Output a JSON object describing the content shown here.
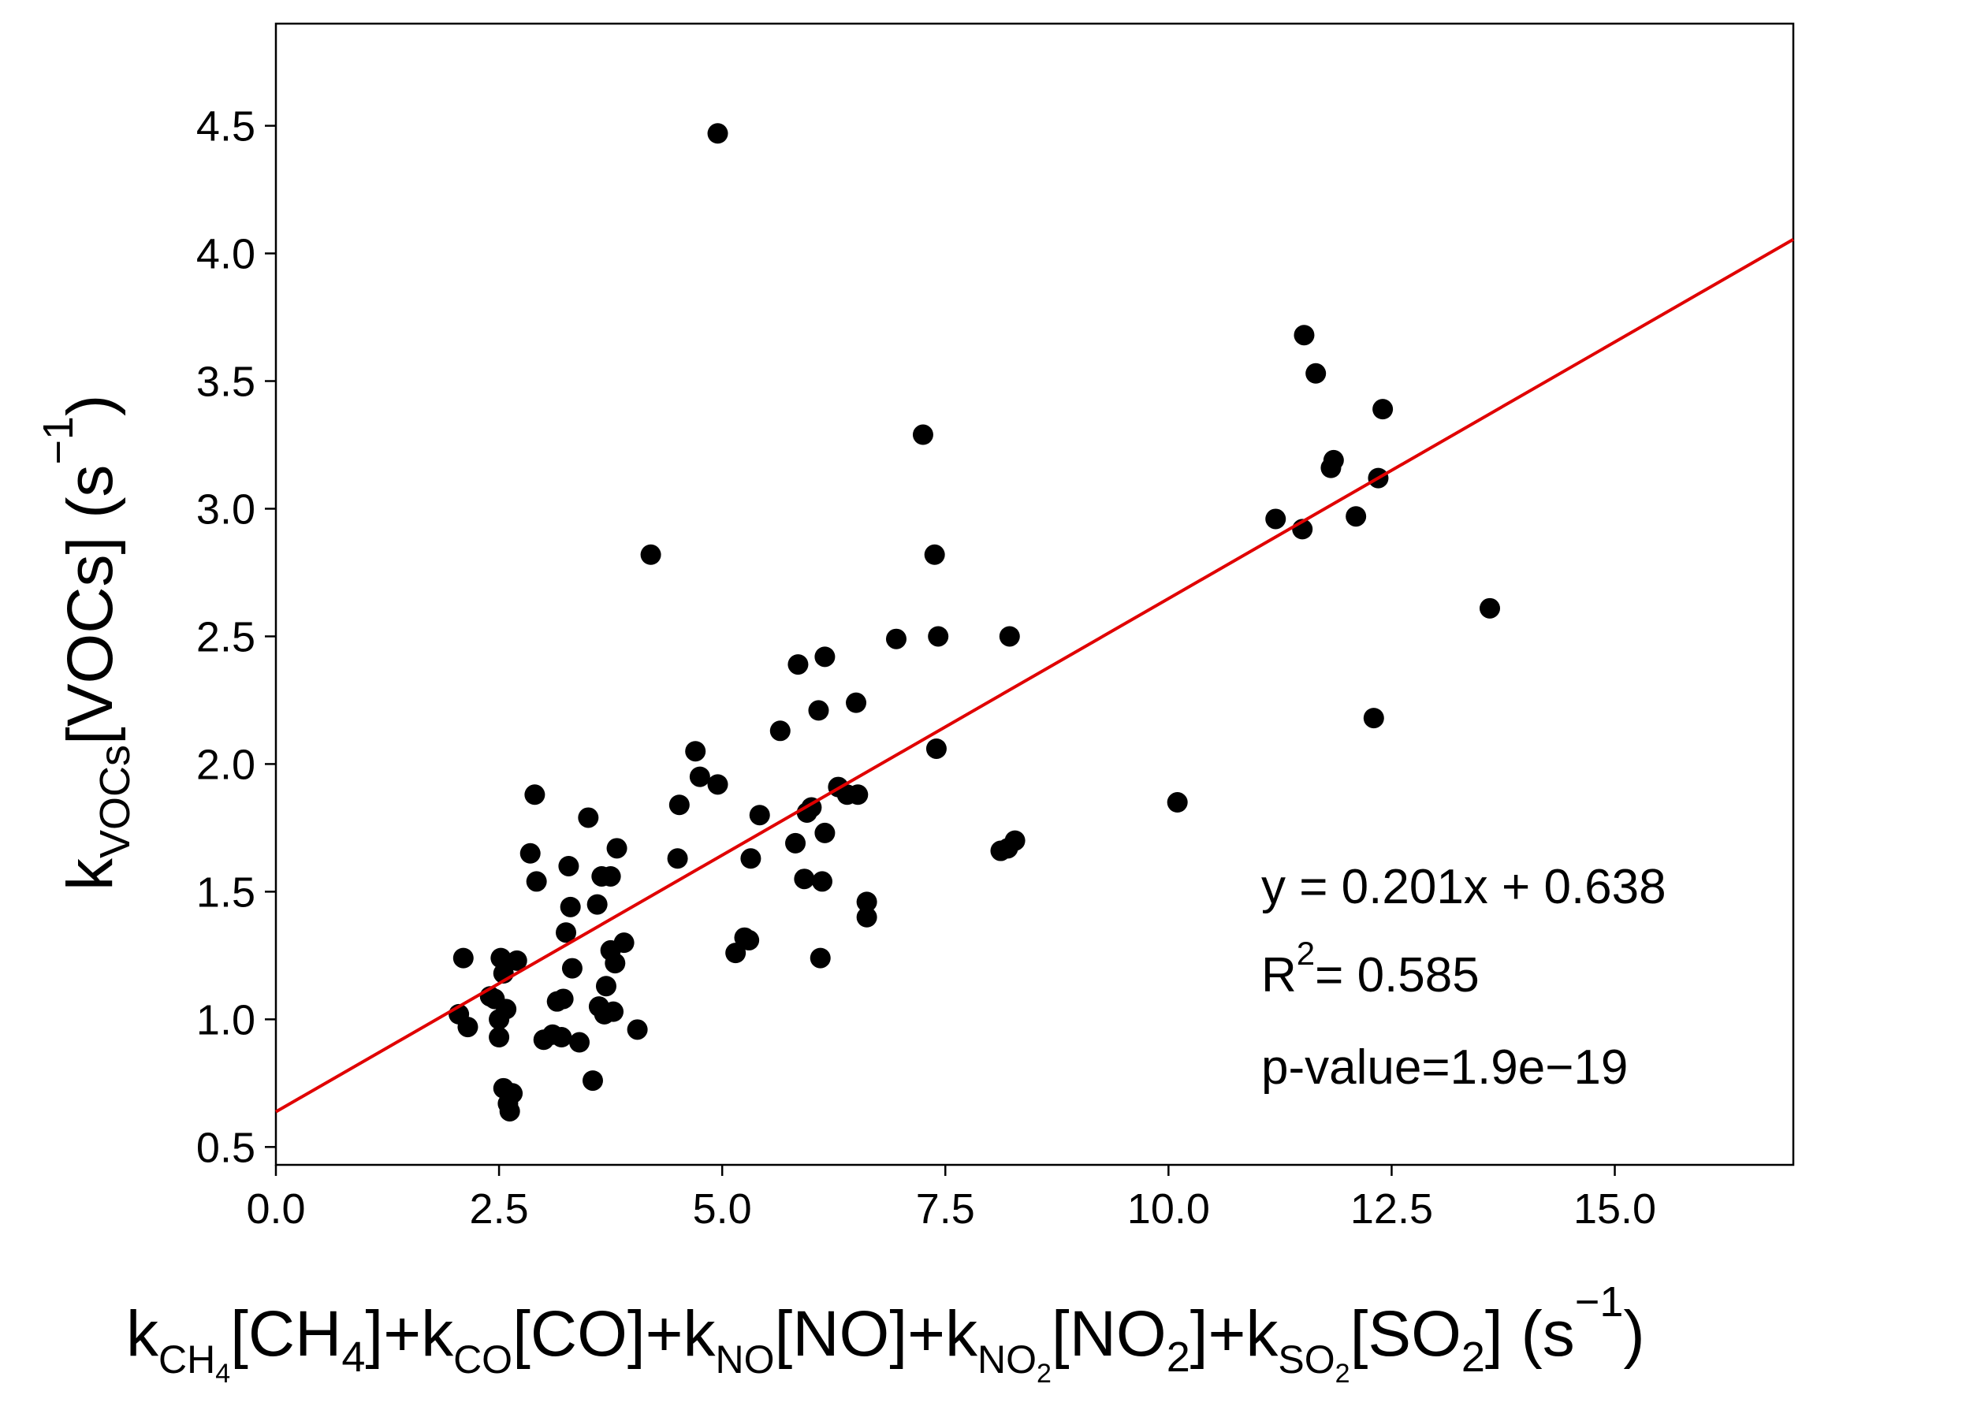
{
  "chart_data": {
    "type": "scatter",
    "xlim": [
      0,
      17
    ],
    "ylim": [
      0.43,
      4.9
    ],
    "x_ticks": [
      "0.0",
      "2.5",
      "5.0",
      "7.5",
      "10.0",
      "12.5",
      "15.0"
    ],
    "y_ticks": [
      "0.5",
      "1.0",
      "1.5",
      "2.0",
      "2.5",
      "3.0",
      "3.5",
      "4.0",
      "4.5"
    ],
    "xlabel": {
      "k": "k",
      "ch4_sub": "CH",
      "ch4_subsub": "4",
      "ch4_bracket_open": "[CH",
      "ch4_bracket_sub": "4",
      "ch4_bracket_close": "]+k",
      "co_sub": "CO",
      "co_bracket": "[CO]+k",
      "no_sub": "NO",
      "no_bracket": "[NO]+k",
      "no2_sub": "NO",
      "no2_subsub": "2",
      "no2_bracket_open": "[NO",
      "no2_bracket_sub": "2",
      "no2_bracket_close": "]+k",
      "so2_sub": "SO",
      "so2_subsub": "2",
      "so2_bracket_open": "[SO",
      "so2_bracket_sub": "2",
      "so2_bracket_close": "] (s",
      "unit_sup": "−1",
      "unit_close": ")"
    },
    "ylabel": {
      "k": "k",
      "sub": "VOCs",
      "main": "[VOCs] (s",
      "sup": "−1",
      "close": ")"
    },
    "annotation": {
      "equation": "y = 0.201x + 0.638",
      "r2_prefix": "R",
      "r2_sup": "2",
      "r2_value": "= 0.585",
      "pvalue": "p-value=1.9e−19"
    },
    "fit": {
      "slope": 0.201,
      "intercept": 0.638,
      "color": "#e00000"
    },
    "marker_color": "#000000",
    "series": [
      {
        "points": [
          [
            2.05,
            1.02
          ],
          [
            2.1,
            1.24
          ],
          [
            2.15,
            0.97
          ],
          [
            2.4,
            1.09
          ],
          [
            2.45,
            1.08
          ],
          [
            2.5,
            1.0
          ],
          [
            2.5,
            0.93
          ],
          [
            2.52,
            1.24
          ],
          [
            2.55,
            1.18
          ],
          [
            2.58,
            1.04
          ],
          [
            2.55,
            0.73
          ],
          [
            2.6,
            0.67
          ],
          [
            2.62,
            0.64
          ],
          [
            2.65,
            0.71
          ],
          [
            2.7,
            1.23
          ],
          [
            2.85,
            1.65
          ],
          [
            2.9,
            1.88
          ],
          [
            2.92,
            1.54
          ],
          [
            3.0,
            0.92
          ],
          [
            3.1,
            0.94
          ],
          [
            3.15,
            1.07
          ],
          [
            3.2,
            0.93
          ],
          [
            3.22,
            1.08
          ],
          [
            3.25,
            1.34
          ],
          [
            3.28,
            1.6
          ],
          [
            3.3,
            1.44
          ],
          [
            3.32,
            1.2
          ],
          [
            3.4,
            0.91
          ],
          [
            3.5,
            1.79
          ],
          [
            3.55,
            0.76
          ],
          [
            3.6,
            1.45
          ],
          [
            3.62,
            1.05
          ],
          [
            3.65,
            1.56
          ],
          [
            3.68,
            1.02
          ],
          [
            3.7,
            1.13
          ],
          [
            3.75,
            1.56
          ],
          [
            3.75,
            1.27
          ],
          [
            3.78,
            1.03
          ],
          [
            3.8,
            1.22
          ],
          [
            3.82,
            1.67
          ],
          [
            3.9,
            1.3
          ],
          [
            4.05,
            0.96
          ],
          [
            4.2,
            2.82
          ],
          [
            4.5,
            1.63
          ],
          [
            4.52,
            1.84
          ],
          [
            4.7,
            2.05
          ],
          [
            4.75,
            1.95
          ],
          [
            4.95,
            4.47
          ],
          [
            4.95,
            1.92
          ],
          [
            5.15,
            1.26
          ],
          [
            5.25,
            1.32
          ],
          [
            5.3,
            1.31
          ],
          [
            5.32,
            1.63
          ],
          [
            5.42,
            1.8
          ],
          [
            5.65,
            2.13
          ],
          [
            5.82,
            1.69
          ],
          [
            5.85,
            2.39
          ],
          [
            5.92,
            1.55
          ],
          [
            5.95,
            1.81
          ],
          [
            6.0,
            1.83
          ],
          [
            6.08,
            2.21
          ],
          [
            6.1,
            1.24
          ],
          [
            6.12,
            1.54
          ],
          [
            6.15,
            2.42
          ],
          [
            6.15,
            1.73
          ],
          [
            6.3,
            1.91
          ],
          [
            6.4,
            1.88
          ],
          [
            6.5,
            2.24
          ],
          [
            6.52,
            1.88
          ],
          [
            6.62,
            1.46
          ],
          [
            6.62,
            1.4
          ],
          [
            6.95,
            2.49
          ],
          [
            7.25,
            3.29
          ],
          [
            7.38,
            2.82
          ],
          [
            7.4,
            2.06
          ],
          [
            7.42,
            2.5
          ],
          [
            8.12,
            1.66
          ],
          [
            8.2,
            1.67
          ],
          [
            8.22,
            2.5
          ],
          [
            8.28,
            1.7
          ],
          [
            10.1,
            1.85
          ],
          [
            11.2,
            2.96
          ],
          [
            11.5,
            2.92
          ],
          [
            11.52,
            3.68
          ],
          [
            11.65,
            3.53
          ],
          [
            11.82,
            3.16
          ],
          [
            11.85,
            3.19
          ],
          [
            12.1,
            2.97
          ],
          [
            12.3,
            2.18
          ],
          [
            12.35,
            3.12
          ],
          [
            12.4,
            3.39
          ],
          [
            13.6,
            2.61
          ]
        ]
      }
    ]
  }
}
